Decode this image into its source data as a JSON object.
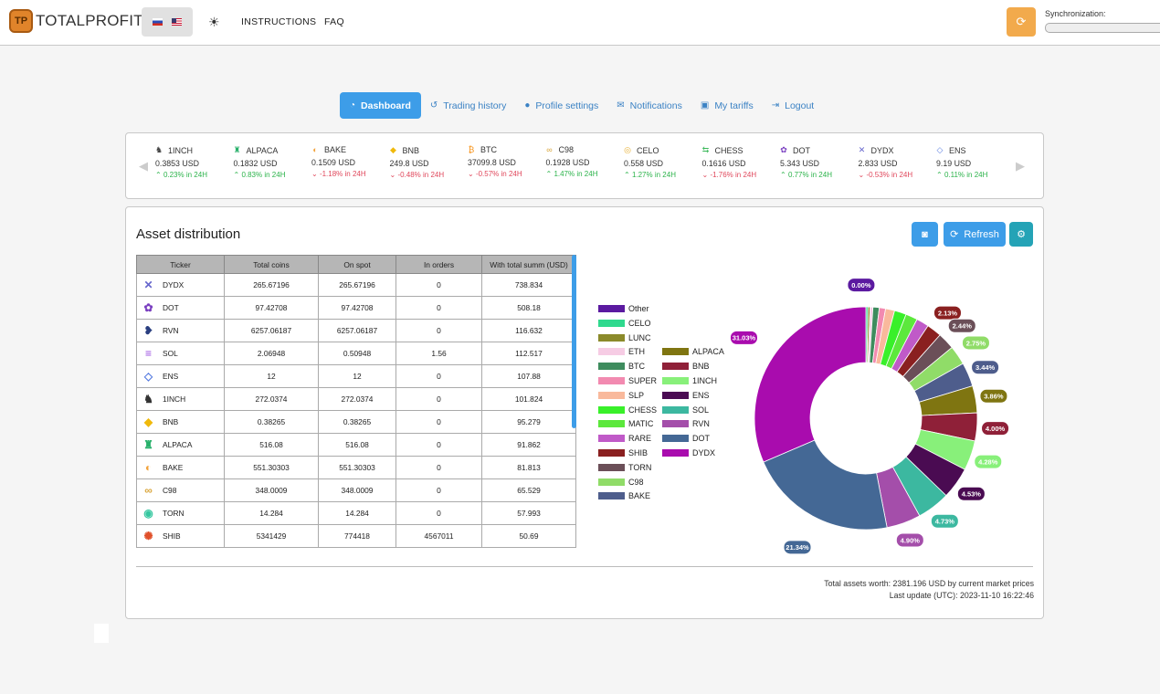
{
  "brand": {
    "logo_mark": "TP",
    "name": "TOTALPROFIT"
  },
  "top_nav": {
    "instructions": "INSTRUCTIONS",
    "faq": "FAQ",
    "sync_label": "Synchronization:"
  },
  "nav": [
    {
      "label": "Dashboard",
      "icon": "dashboard-icon",
      "active": true
    },
    {
      "label": "Trading history",
      "icon": "history-icon",
      "active": false
    },
    {
      "label": "Profile settings",
      "icon": "user-icon",
      "active": false
    },
    {
      "label": "Notifications",
      "icon": "envelope-icon",
      "active": false
    },
    {
      "label": "My tariffs",
      "icon": "money-icon",
      "active": false
    },
    {
      "label": "Logout",
      "icon": "logout-icon",
      "active": false
    }
  ],
  "tickers": [
    {
      "name": "1INCH",
      "price": "0.3853 USD",
      "change": "0.23% in 24H",
      "dir": "up"
    },
    {
      "name": "ALPACA",
      "price": "0.1832 USD",
      "change": "0.83% in 24H",
      "dir": "up"
    },
    {
      "name": "BAKE",
      "price": "0.1509 USD",
      "change": "-1.18% in 24H",
      "dir": "down"
    },
    {
      "name": "BNB",
      "price": "249.8 USD",
      "change": "-0.48% in 24H",
      "dir": "down"
    },
    {
      "name": "BTC",
      "price": "37099.8 USD",
      "change": "-0.57% in 24H",
      "dir": "down"
    },
    {
      "name": "C98",
      "price": "0.1928 USD",
      "change": "1.47% in 24H",
      "dir": "up"
    },
    {
      "name": "CELO",
      "price": "0.558 USD",
      "change": "1.27% in 24H",
      "dir": "up"
    },
    {
      "name": "CHESS",
      "price": "0.1616 USD",
      "change": "-1.76% in 24H",
      "dir": "down"
    },
    {
      "name": "DOT",
      "price": "5.343 USD",
      "change": "0.77% in 24H",
      "dir": "up"
    },
    {
      "name": "DYDX",
      "price": "2.833 USD",
      "change": "-0.53% in 24H",
      "dir": "down"
    },
    {
      "name": "ENS",
      "price": "9.19 USD",
      "change": "0.11% in 24H",
      "dir": "up"
    }
  ],
  "panel": {
    "title": "Asset distribution",
    "refresh_label": "Refresh"
  },
  "table": {
    "headers": [
      "Ticker",
      "Total coins",
      "On spot",
      "In orders",
      "With total summ (USD)"
    ],
    "rows": [
      [
        "DYDX",
        "265.67196",
        "265.67196",
        "0",
        "738.834"
      ],
      [
        "DOT",
        "97.42708",
        "97.42708",
        "0",
        "508.18"
      ],
      [
        "RVN",
        "6257.06187",
        "6257.06187",
        "0",
        "116.632"
      ],
      [
        "SOL",
        "2.06948",
        "0.50948",
        "1.56",
        "112.517"
      ],
      [
        "ENS",
        "12",
        "12",
        "0",
        "107.88"
      ],
      [
        "1INCH",
        "272.0374",
        "272.0374",
        "0",
        "101.824"
      ],
      [
        "BNB",
        "0.38265",
        "0.38265",
        "0",
        "95.279"
      ],
      [
        "ALPACA",
        "516.08",
        "516.08",
        "0",
        "91.862"
      ],
      [
        "BAKE",
        "551.30303",
        "551.30303",
        "0",
        "81.813"
      ],
      [
        "C98",
        "348.0009",
        "348.0009",
        "0",
        "65.529"
      ],
      [
        "TORN",
        "14.284",
        "14.284",
        "0",
        "57.993"
      ],
      [
        "SHIB",
        "5341429",
        "774418",
        "4567011",
        "50.69"
      ]
    ]
  },
  "legend": [
    {
      "label": "Other",
      "color": "#5b1aa0"
    },
    {
      "label": "CELO",
      "color": "#2fd98e"
    },
    {
      "label": "LUNC",
      "color": "#8b8a2a"
    },
    {
      "label": "ETH",
      "color": "#f6cce4"
    },
    {
      "label": "BTC",
      "color": "#3e8c5e"
    },
    {
      "label": "SUPER",
      "color": "#f28ab0"
    },
    {
      "label": "SLP",
      "color": "#f9b99c"
    },
    {
      "label": "CHESS",
      "color": "#39f02a"
    },
    {
      "label": "MATIC",
      "color": "#5ce83c"
    },
    {
      "label": "RARE",
      "color": "#c05ac8"
    },
    {
      "label": "SHIB",
      "color": "#8a2020"
    },
    {
      "label": "TORN",
      "color": "#6b4f58"
    },
    {
      "label": "C98",
      "color": "#90dc68"
    },
    {
      "label": "BAKE",
      "color": "#4e5d8c"
    },
    {
      "label": "ALPACA",
      "color": "#7f7511"
    },
    {
      "label": "BNB",
      "color": "#8f2038"
    },
    {
      "label": "1INCH",
      "color": "#88f07a"
    },
    {
      "label": "ENS",
      "color": "#4a0b52"
    },
    {
      "label": "SOL",
      "color": "#3cb8a0"
    },
    {
      "label": "RVN",
      "color": "#a44eaa"
    },
    {
      "label": "DOT",
      "color": "#446895"
    },
    {
      "label": "DYDX",
      "color": "#a90cae"
    }
  ],
  "chart_data": {
    "type": "pie",
    "series": [
      {
        "name": "Other",
        "value": 0.0,
        "label": "0.00%"
      },
      {
        "name": "CELO",
        "value": 0.3,
        "label": ""
      },
      {
        "name": "LUNC",
        "value": 0.3,
        "label": ""
      },
      {
        "name": "ETH",
        "value": 0.4,
        "label": ""
      },
      {
        "name": "BTC",
        "value": 0.9,
        "label": ""
      },
      {
        "name": "SUPER",
        "value": 0.9,
        "label": ""
      },
      {
        "name": "SLP",
        "value": 1.3,
        "label": ""
      },
      {
        "name": "CHESS",
        "value": 1.7,
        "label": ""
      },
      {
        "name": "MATIC",
        "value": 1.7,
        "label": ""
      },
      {
        "name": "RARE",
        "value": 1.8,
        "label": ""
      },
      {
        "name": "SHIB",
        "value": 2.13,
        "label": "2.13%"
      },
      {
        "name": "TORN",
        "value": 2.44,
        "label": "2.44%"
      },
      {
        "name": "C98",
        "value": 2.75,
        "label": "2.75%"
      },
      {
        "name": "BAKE",
        "value": 3.44,
        "label": "3.44%"
      },
      {
        "name": "ALPACA",
        "value": 3.86,
        "label": "3.86%"
      },
      {
        "name": "BNB",
        "value": 4.0,
        "label": "4.00%"
      },
      {
        "name": "1INCH",
        "value": 4.28,
        "label": "4.28%"
      },
      {
        "name": "ENS",
        "value": 4.53,
        "label": "4.53%"
      },
      {
        "name": "SOL",
        "value": 4.73,
        "label": "4.73%"
      },
      {
        "name": "RVN",
        "value": 4.9,
        "label": "4.90%"
      },
      {
        "name": "DOT",
        "value": 21.34,
        "label": "21.34%"
      },
      {
        "name": "DYDX",
        "value": 31.03,
        "label": "31.03%"
      }
    ]
  },
  "footer": {
    "total": "Total assets worth: 2381.196 USD by current market prices",
    "updated": "Last update (UTC): 2023-11-10 16:22:46"
  }
}
